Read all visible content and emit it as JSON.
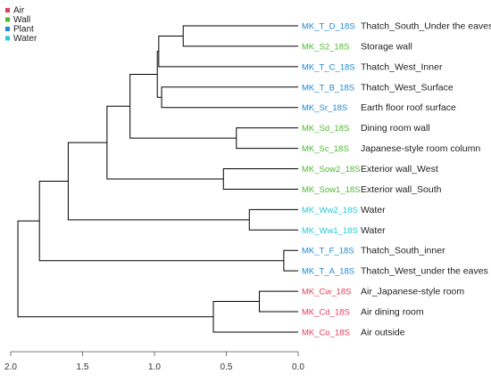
{
  "legend": [
    {
      "label": "Air",
      "color": "#e0405f"
    },
    {
      "label": "Wall",
      "color": "#4cbb2f"
    },
    {
      "label": "Plant",
      "color": "#1c8ad9"
    },
    {
      "label": "Water",
      "color": "#26c9d6"
    }
  ],
  "leaves": [
    {
      "id": "MK_T_D_18S",
      "desc": "Thatch_South_Under the eaves",
      "group": "Plant"
    },
    {
      "id": "MK_S2_18S",
      "desc": "Storage wall",
      "group": "Wall"
    },
    {
      "id": "MK_T_C_18S",
      "desc": "Thatch_West_Inner",
      "group": "Plant"
    },
    {
      "id": "MK_T_B_18S",
      "desc": "Thatch_West_Surface",
      "group": "Plant"
    },
    {
      "id": "MK_Sr_18S",
      "desc": "Earth floor roof surface",
      "group": "Plant"
    },
    {
      "id": "MK_Sd_18S",
      "desc": "Dining room wall",
      "group": "Wall"
    },
    {
      "id": "MK_Sc_18S",
      "desc": "Japanese-style room column",
      "group": "Wall"
    },
    {
      "id": "MK_Sow2_18S",
      "desc": "Exterior wall_West",
      "group": "Wall"
    },
    {
      "id": "MK_Sow1_18S",
      "desc": "Exterior wall_South",
      "group": "Wall"
    },
    {
      "id": "MK_Ww2_18S",
      "desc": "Water",
      "group": "Water"
    },
    {
      "id": "MK_Ww1_18S",
      "desc": "Water",
      "group": "Water"
    },
    {
      "id": "MK_T_F_18S",
      "desc": "Thatch_South_inner",
      "group": "Plant"
    },
    {
      "id": "MK_T_A_18S",
      "desc": "Thatch_West_under the eaves",
      "group": "Plant"
    },
    {
      "id": "MK_Cw_18S",
      "desc": "Air_Japanese-style room",
      "group": "Air"
    },
    {
      "id": "MK_Cd_18S",
      "desc": "Air dining room",
      "group": "Air"
    },
    {
      "id": "MK_Co_18S",
      "desc": "Air outside",
      "group": "Air"
    }
  ],
  "tree": {
    "h": 1.95,
    "c": [
      {
        "h": 1.8,
        "c": [
          {
            "h": 1.6,
            "c": [
              {
                "h": 1.33,
                "c": [
                  {
                    "h": 1.17,
                    "c": [
                      {
                        "h": 0.98,
                        "c": [
                          {
                            "h": 0.97,
                            "c": [
                              {
                                "h": 0.8,
                                "c": [
                                  {
                                    "leaf": 0
                                  },
                                  {
                                    "leaf": 1
                                  }
                                ]
                              },
                              {
                                "leaf": 2
                              }
                            ]
                          },
                          {
                            "h": 0.95,
                            "c": [
                              {
                                "leaf": 3
                              },
                              {
                                "leaf": 4
                              }
                            ]
                          }
                        ]
                      },
                      {
                        "h": 0.43,
                        "c": [
                          {
                            "leaf": 5
                          },
                          {
                            "leaf": 6
                          }
                        ]
                      }
                    ]
                  },
                  {
                    "h": 0.52,
                    "c": [
                      {
                        "leaf": 7
                      },
                      {
                        "leaf": 8
                      }
                    ]
                  }
                ]
              },
              {
                "h": 0.34,
                "c": [
                  {
                    "leaf": 9
                  },
                  {
                    "leaf": 10
                  }
                ]
              }
            ]
          },
          {
            "h": 0.1,
            "c": [
              {
                "leaf": 11
              },
              {
                "leaf": 12
              }
            ]
          }
        ]
      },
      {
        "h": 0.59,
        "c": [
          {
            "h": 0.27,
            "c": [
              {
                "leaf": 13
              },
              {
                "leaf": 14
              }
            ]
          },
          {
            "leaf": 15
          }
        ]
      }
    ]
  },
  "axis": {
    "ticks": [
      "2.0",
      "1.5",
      "1.0",
      "0.5",
      "0.0"
    ],
    "tick_values": [
      2.0,
      1.5,
      1.0,
      0.5,
      0.0
    ],
    "xlim": [
      2.0,
      0.0
    ]
  }
}
